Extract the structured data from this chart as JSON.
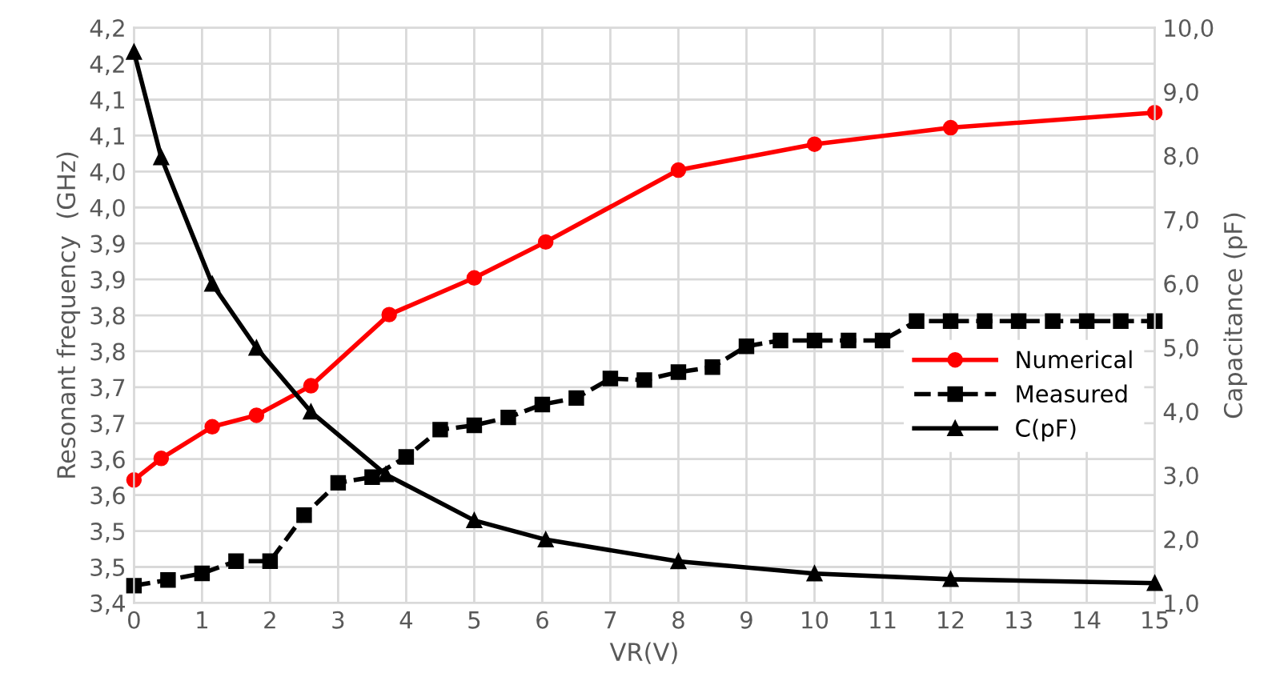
{
  "chart_data": {
    "type": "line",
    "xlabel": "VR(V)",
    "ylabel": "Resonant frequency  (GHz)",
    "y2label": "Capacitance (pF)",
    "xlim": [
      0,
      15
    ],
    "xticks": [
      0,
      1,
      2,
      3,
      4,
      5,
      6,
      7,
      8,
      9,
      10,
      11,
      12,
      13,
      14,
      15
    ],
    "ylim": [
      3.4,
      4.2
    ],
    "yticks": [
      {
        "value": 3.4,
        "label": "3,4"
      },
      {
        "value": 3.45,
        "label": "3,5"
      },
      {
        "value": 3.5,
        "label": "3,5"
      },
      {
        "value": 3.55,
        "label": "3,6"
      },
      {
        "value": 3.6,
        "label": "3,6"
      },
      {
        "value": 3.65,
        "label": "3,7"
      },
      {
        "value": 3.7,
        "label": "3,7"
      },
      {
        "value": 3.75,
        "label": "3,8"
      },
      {
        "value": 3.8,
        "label": "3,8"
      },
      {
        "value": 3.85,
        "label": "3,9"
      },
      {
        "value": 3.9,
        "label": "3,9"
      },
      {
        "value": 3.95,
        "label": "4,0"
      },
      {
        "value": 4.0,
        "label": "4,0"
      },
      {
        "value": 4.05,
        "label": "4,1"
      },
      {
        "value": 4.1,
        "label": "4,1"
      },
      {
        "value": 4.15,
        "label": "4,2"
      },
      {
        "value": 4.2,
        "label": "4,2"
      }
    ],
    "y2lim": [
      1,
      10
    ],
    "y2ticks": [
      {
        "value": 1,
        "label": "1,0"
      },
      {
        "value": 2,
        "label": "2,0"
      },
      {
        "value": 3,
        "label": "3,0"
      },
      {
        "value": 4,
        "label": "4,0"
      },
      {
        "value": 5,
        "label": "5,0"
      },
      {
        "value": 6,
        "label": "6,0"
      },
      {
        "value": 7,
        "label": "7,0"
      },
      {
        "value": 8,
        "label": "8,0"
      },
      {
        "value": 9,
        "label": "9,0"
      },
      {
        "value": 10,
        "label": "10,0"
      }
    ],
    "grid": true,
    "legend": "right",
    "series": [
      {
        "name": "Numerical",
        "color": "#ff0000",
        "marker": "circle",
        "line_style": "solid",
        "x": [
          0,
          0.4,
          1.15,
          1.8,
          2.6,
          3.75,
          5,
          6.05,
          8,
          10,
          12,
          15
        ],
        "values": [
          3.571,
          3.601,
          3.645,
          3.661,
          3.702,
          3.801,
          3.852,
          3.902,
          4.002,
          4.038,
          4.061,
          4.082
        ]
      },
      {
        "name": "Measured",
        "color": "#000000",
        "marker": "square",
        "line_style": "dashed",
        "x": [
          0,
          0.5,
          1,
          1.5,
          2,
          2.5,
          3,
          3.5,
          4,
          4.5,
          5,
          5.5,
          6,
          6.5,
          7,
          7.5,
          8,
          8.5,
          9,
          9.5,
          10,
          10.5,
          11,
          11.5,
          12,
          12.5,
          13,
          13.5,
          14,
          14.5,
          15
        ],
        "values": [
          3.424,
          3.432,
          3.441,
          3.458,
          3.458,
          3.522,
          3.567,
          3.575,
          3.603,
          3.641,
          3.647,
          3.658,
          3.676,
          3.685,
          3.712,
          3.71,
          3.721,
          3.728,
          3.757,
          3.765,
          3.765,
          3.765,
          3.765,
          3.792,
          3.792,
          3.792,
          3.792,
          3.792,
          3.792,
          3.792,
          3.792
        ]
      },
      {
        "name": "C(pF)",
        "color": "#000000",
        "marker": "triangle",
        "line_style": "solid",
        "axis": "y2",
        "x": [
          0,
          0.4,
          1.15,
          1.8,
          2.6,
          3.7,
          5,
          6.05,
          8,
          10,
          12,
          15
        ],
        "values": [
          9.62,
          7.97,
          5.99,
          4.99,
          3.99,
          3.01,
          2.29,
          1.99,
          1.65,
          1.46,
          1.37,
          1.31
        ]
      }
    ]
  }
}
